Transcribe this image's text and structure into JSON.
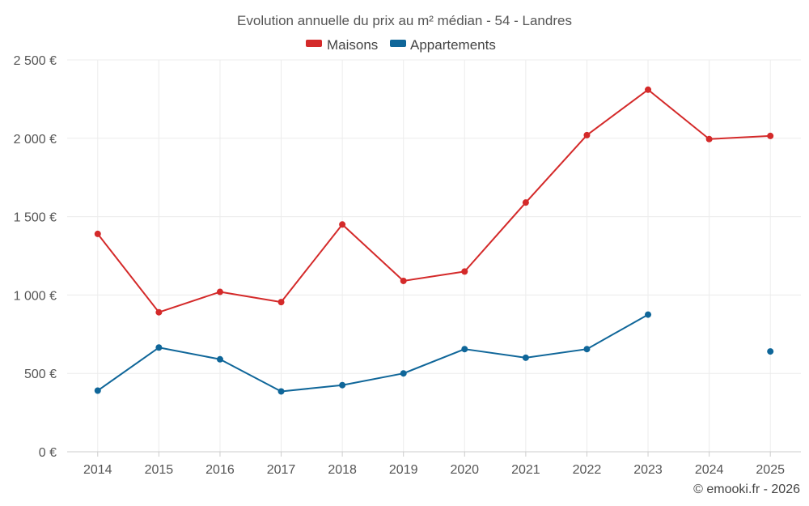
{
  "chart_data": {
    "type": "line",
    "title": "Evolution annuelle du prix au m² médian - 54 - Landres",
    "xlabel": "",
    "ylabel": "",
    "categories": [
      "2014",
      "2015",
      "2016",
      "2017",
      "2018",
      "2019",
      "2020",
      "2021",
      "2022",
      "2023",
      "2024",
      "2025"
    ],
    "ylim": [
      0,
      2500
    ],
    "yticks": [
      0,
      500,
      1000,
      1500,
      2000,
      2500
    ],
    "ytick_labels": [
      "0 €",
      "500 €",
      "1 000 €",
      "1 500 €",
      "2 000 €",
      "2 500 €"
    ],
    "grid": true,
    "legend_position": "top-center",
    "series": [
      {
        "name": "Maisons",
        "color": "#d42a2a",
        "values": [
          1390,
          890,
          1020,
          955,
          1450,
          1090,
          1150,
          1590,
          2020,
          2310,
          1995,
          2015
        ]
      },
      {
        "name": "Appartements",
        "color": "#0f6699",
        "values": [
          390,
          665,
          590,
          385,
          425,
          500,
          655,
          600,
          655,
          875,
          null,
          640
        ]
      }
    ]
  },
  "credit": "© emooki.fr - 2026"
}
